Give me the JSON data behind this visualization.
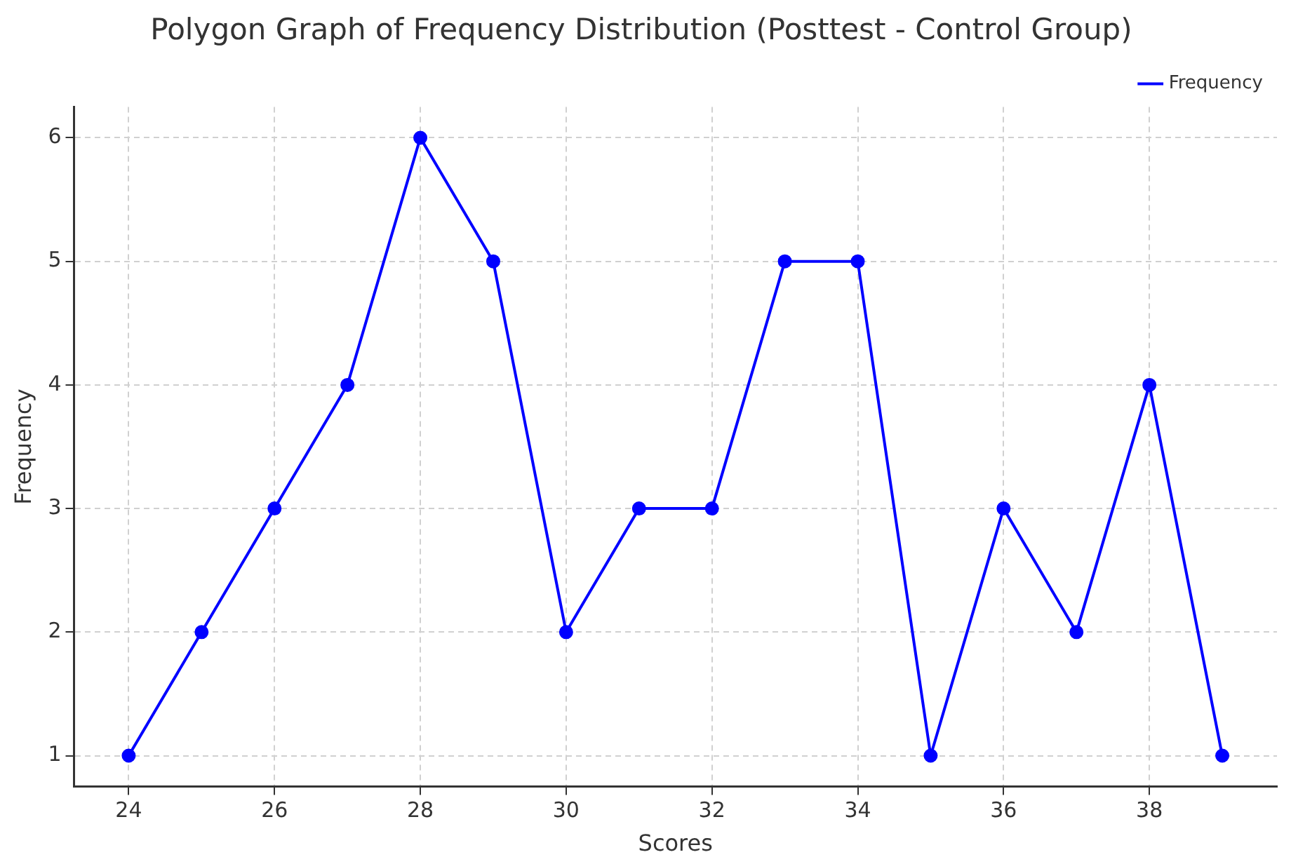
{
  "chart_data": {
    "type": "line",
    "title": "Polygon Graph of Frequency Distribution (Posttest - Control Group)",
    "xlabel": "Scores",
    "ylabel": "Frequency",
    "x": [
      24,
      25,
      26,
      27,
      28,
      29,
      30,
      31,
      32,
      33,
      34,
      35,
      36,
      37,
      38,
      39
    ],
    "series": [
      {
        "name": "Frequency",
        "color": "#0000ff",
        "values": [
          1,
          2,
          3,
          4,
          6,
          5,
          2,
          3,
          3,
          5,
          5,
          1,
          3,
          2,
          4,
          1
        ]
      }
    ],
    "xlim": [
      23.25,
      39.75
    ],
    "xticks": [
      24,
      26,
      28,
      30,
      32,
      34,
      36,
      38
    ],
    "ylim": [
      0.75,
      6.25
    ],
    "yticks": [
      1,
      2,
      3,
      4,
      5,
      6
    ],
    "grid": true,
    "legend": "top right",
    "marker": "circle",
    "line_style": "solid"
  }
}
